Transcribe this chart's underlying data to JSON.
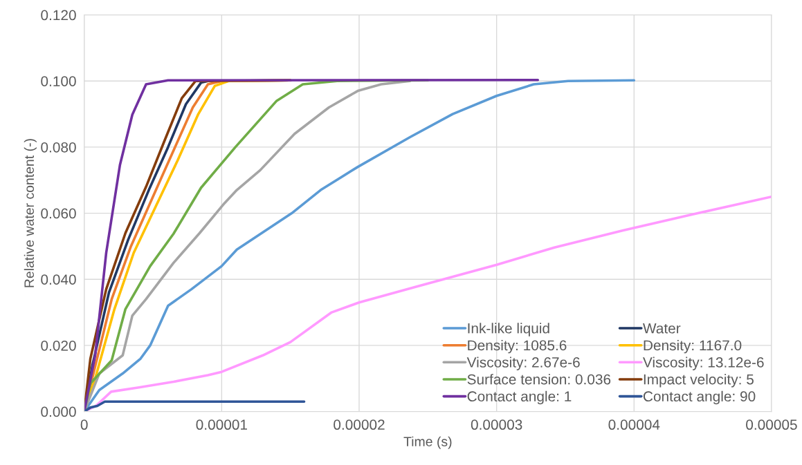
{
  "chart_data": {
    "type": "line",
    "xlabel": "Time (s)",
    "ylabel": "Relative water content (-)",
    "xlim": [
      0,
      5e-05
    ],
    "ylim": [
      0,
      0.12
    ],
    "xticks": [
      0,
      {
        "value": 1e-05,
        "label": "0.00001"
      },
      {
        "value": 2e-05,
        "label": "0.00002"
      },
      {
        "value": 3e-05,
        "label": "0.00003"
      },
      {
        "value": 4e-05,
        "label": "0.00004"
      },
      {
        "value": 5e-05,
        "label": "0.00005"
      }
    ],
    "yticks": [
      {
        "value": 0,
        "label": "0.000"
      },
      {
        "value": 0.02,
        "label": "0.020"
      },
      {
        "value": 0.04,
        "label": "0.040"
      },
      {
        "value": 0.06,
        "label": "0.060"
      },
      {
        "value": 0.08,
        "label": "0.080"
      },
      {
        "value": 0.1,
        "label": "0.100"
      },
      {
        "value": 0.12,
        "label": "0.120"
      }
    ],
    "grid": true,
    "legend": "bottom right",
    "marker": "none",
    "line_style": "solid",
    "series": [
      {
        "name": "Ink-like liquid",
        "color": "#5b9bd5",
        "x": [
          0,
          1.1e-06,
          2.8e-06,
          4.1e-06,
          4.8e-06,
          6.1e-06,
          7.8e-06,
          1e-05,
          1.11e-05,
          1.51e-05,
          1.72e-05,
          1.99e-05,
          2.37e-05,
          2.68e-05,
          3e-05,
          3.27e-05,
          3.52e-05,
          4e-05
        ],
        "values": [
          0,
          0.0065,
          0.0115,
          0.016,
          0.02,
          0.032,
          0.037,
          0.044,
          0.049,
          0.06,
          0.067,
          0.074,
          0.083,
          0.09,
          0.0955,
          0.099,
          0.1,
          0.1002
        ]
      },
      {
        "name": "Water",
        "color": "#203864",
        "x": [
          0,
          6e-07,
          1.8e-06,
          3.2e-06,
          4.7e-06,
          6.1e-06,
          7.4e-06,
          8.5e-06,
          9e-06,
          1.5e-05
        ],
        "values": [
          0,
          0.014,
          0.036,
          0.052,
          0.067,
          0.08,
          0.093,
          0.0995,
          0.1,
          0.1002
        ]
      },
      {
        "name": "Density: 1085.6",
        "color": "#ed7d31",
        "x": [
          0,
          7e-07,
          2e-06,
          3.4e-06,
          5e-06,
          6.5e-06,
          7.9e-06,
          9e-06,
          1e-05,
          1.5e-05
        ],
        "values": [
          0,
          0.012,
          0.034,
          0.05,
          0.065,
          0.079,
          0.092,
          0.099,
          0.1,
          0.1002
        ]
      },
      {
        "name": "Density: 1167.0",
        "color": "#ffc000",
        "x": [
          0,
          8e-07,
          2.2e-06,
          3.6e-06,
          5.2e-06,
          6.8e-06,
          8.3e-06,
          9.5e-06,
          1.05e-05,
          1.5e-05
        ],
        "values": [
          0,
          0.01,
          0.031,
          0.048,
          0.062,
          0.076,
          0.09,
          0.0985,
          0.1,
          0.1002
        ]
      },
      {
        "name": "Viscosity: 2.67e-6",
        "color": "#a5a5a5",
        "x": [
          0,
          1.1e-06,
          2.8e-06,
          3.5e-06,
          4.5e-06,
          6.5e-06,
          8.4e-06,
          1.02e-05,
          1.11e-05,
          1.28e-05,
          1.53e-05,
          1.78e-05,
          1.99e-05,
          2.16e-05,
          2.37e-05
        ],
        "values": [
          0,
          0.0115,
          0.017,
          0.029,
          0.034,
          0.045,
          0.054,
          0.063,
          0.067,
          0.073,
          0.084,
          0.092,
          0.097,
          0.099,
          0.1
        ]
      },
      {
        "name": "Viscosity: 13.12e-6",
        "color": "#ff99ff",
        "x": [
          0,
          8.5e-07,
          1.96e-06,
          3.98e-06,
          6.5e-06,
          9e-06,
          1e-05,
          1.3e-05,
          1.5e-05,
          1.8e-05,
          2e-05,
          2.41e-05,
          3e-05,
          3.42e-05,
          3.92e-05,
          4.42e-05,
          5e-05
        ],
        "values": [
          0,
          0.0017,
          0.006,
          0.0073,
          0.009,
          0.011,
          0.012,
          0.017,
          0.021,
          0.03,
          0.033,
          0.0377,
          0.0444,
          0.0496,
          0.0548,
          0.0596,
          0.065
        ]
      },
      {
        "name": "Surface tension: 0.036",
        "color": "#70ad47",
        "x": [
          0,
          4.5e-07,
          2e-06,
          3e-06,
          4.8e-06,
          6.5e-06,
          8.5e-06,
          1.1e-05,
          1.4e-05,
          1.59e-05,
          1.84e-05,
          2.5e-05
        ],
        "values": [
          0,
          0.0085,
          0.0155,
          0.031,
          0.044,
          0.0538,
          0.0677,
          0.08,
          0.094,
          0.099,
          0.1,
          0.1002
        ]
      },
      {
        "name": "Impact velocity: 5",
        "color": "#843c0c",
        "x": [
          0,
          4.5e-07,
          1.6e-06,
          3e-06,
          4.5e-06,
          5.8e-06,
          7.1e-06,
          8.1e-06,
          1.5e-05
        ],
        "values": [
          0,
          0.016,
          0.037,
          0.054,
          0.068,
          0.0815,
          0.0948,
          0.1,
          0.1002
        ]
      },
      {
        "name": "Contact angle: 1",
        "color": "#7030a0",
        "x": [
          0,
          8e-07,
          1.6e-06,
          2.6e-06,
          3.5e-06,
          4.5e-06,
          6.1e-06,
          3.3e-05
        ],
        "values": [
          0,
          0.017,
          0.048,
          0.0746,
          0.0898,
          0.099,
          0.1002,
          0.1003
        ]
      },
      {
        "name": "Contact angle: 90",
        "color": "#2f5597",
        "x": [
          0,
          4.5e-07,
          9.5e-07,
          1.5e-06,
          1.6e-05
        ],
        "values": [
          0,
          0.0012,
          0.0017,
          0.003,
          0.003
        ]
      }
    ]
  }
}
